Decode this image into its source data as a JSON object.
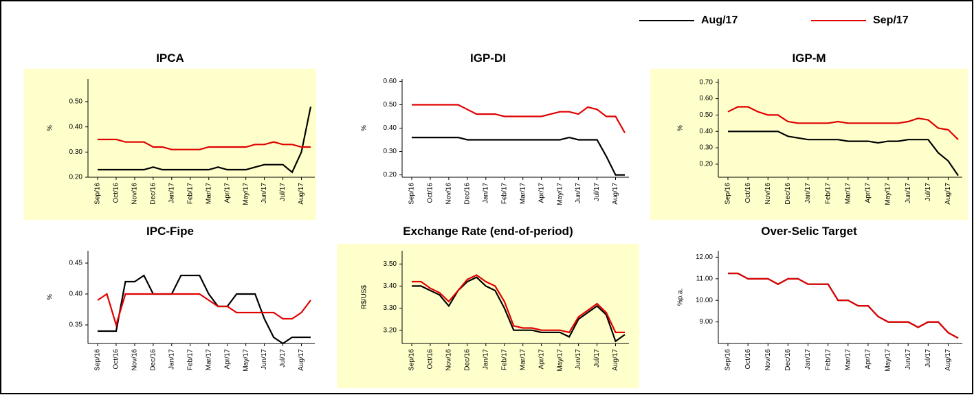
{
  "chart_data": [
    {
      "type": "line",
      "title": "IPCA",
      "y_label": "%",
      "panel": "#ffffcc",
      "categories": [
        "Sep/16",
        null,
        "Oct/16",
        null,
        "Nov/16",
        null,
        "Dec/16",
        null,
        "Jan/17",
        null,
        "Feb/17",
        null,
        "Mar/17",
        null,
        "Apr/17",
        null,
        "May/17",
        null,
        "Jun/17",
        null,
        "Jul/17",
        null,
        "Aug/17",
        null
      ],
      "ylim": [
        0.2,
        0.59
      ],
      "yticks": [
        {
          "value": 0.2,
          "label": "0.20"
        },
        {
          "value": 0.3,
          "label": "0.30"
        },
        {
          "value": 0.4,
          "label": "0.40"
        },
        {
          "value": 0.5,
          "label": "0.50"
        }
      ],
      "series": [
        {
          "name": "Aug/17",
          "color": "#000000",
          "values": [
            0.23,
            0.23,
            0.23,
            0.23,
            0.23,
            0.23,
            0.24,
            0.23,
            0.23,
            0.23,
            0.23,
            0.23,
            0.23,
            0.24,
            0.23,
            0.23,
            0.23,
            0.24,
            0.25,
            0.25,
            0.25,
            0.22,
            0.3,
            0.48
          ]
        },
        {
          "name": "Sep/17",
          "color": "#e00000",
          "values": [
            0.35,
            0.35,
            0.35,
            0.34,
            0.34,
            0.34,
            0.32,
            0.32,
            0.31,
            0.31,
            0.31,
            0.31,
            0.32,
            0.32,
            0.32,
            0.32,
            0.32,
            0.33,
            0.33,
            0.34,
            0.33,
            0.33,
            0.32,
            0.32
          ]
        }
      ]
    },
    {
      "type": "line",
      "title": "IGP-DI",
      "y_label": "%",
      "panel": "#ffffff",
      "categories": [
        "Sep/16",
        null,
        "Oct/16",
        null,
        "Nov/16",
        null,
        "Dec/16",
        null,
        "Jan/17",
        null,
        "Feb/17",
        null,
        "Mar/17",
        null,
        "Apr/17",
        null,
        "May/17",
        null,
        "Jun/17",
        null,
        "Jul/17",
        null,
        "Aug/17",
        null
      ],
      "ylim": [
        0.19,
        0.61
      ],
      "yticks": [
        {
          "value": 0.2,
          "label": "0.20"
        },
        {
          "value": 0.3,
          "label": "0.30"
        },
        {
          "value": 0.4,
          "label": "0.40"
        },
        {
          "value": 0.5,
          "label": "0.50"
        },
        {
          "value": 0.6,
          "label": "0.60"
        }
      ],
      "series": [
        {
          "name": "Aug/17",
          "color": "#000000",
          "values": [
            0.36,
            0.36,
            0.36,
            0.36,
            0.36,
            0.36,
            0.35,
            0.35,
            0.35,
            0.35,
            0.35,
            0.35,
            0.35,
            0.35,
            0.35,
            0.35,
            0.35,
            0.36,
            0.35,
            0.35,
            0.35,
            0.28,
            0.2,
            0.2
          ]
        },
        {
          "name": "Sep/17",
          "color": "#e00000",
          "values": [
            0.5,
            0.5,
            0.5,
            0.5,
            0.5,
            0.5,
            0.48,
            0.46,
            0.46,
            0.46,
            0.45,
            0.45,
            0.45,
            0.45,
            0.45,
            0.46,
            0.47,
            0.47,
            0.46,
            0.49,
            0.48,
            0.45,
            0.45,
            0.38
          ]
        }
      ]
    },
    {
      "type": "line",
      "title": "IGP-M",
      "y_label": "%",
      "panel": "#ffffcc",
      "categories": [
        "Sep/16",
        null,
        "Oct/16",
        null,
        "Nov/16",
        null,
        "Dec/16",
        null,
        "Jan/17",
        null,
        "Feb/17",
        null,
        "Mar/17",
        null,
        "Apr/17",
        null,
        "May/17",
        null,
        "Jun/17",
        null,
        "Jul/17",
        null,
        "Aug/17",
        null
      ],
      "ylim": [
        0.12,
        0.72
      ],
      "yticks": [
        {
          "value": 0.2,
          "label": "0.20"
        },
        {
          "value": 0.3,
          "label": "0.30"
        },
        {
          "value": 0.4,
          "label": "0.40"
        },
        {
          "value": 0.5,
          "label": "0.50"
        },
        {
          "value": 0.6,
          "label": "0.60"
        },
        {
          "value": 0.7,
          "label": "0.70"
        }
      ],
      "series": [
        {
          "name": "Aug/17",
          "color": "#000000",
          "values": [
            0.4,
            0.4,
            0.4,
            0.4,
            0.4,
            0.4,
            0.37,
            0.36,
            0.35,
            0.35,
            0.35,
            0.35,
            0.34,
            0.34,
            0.34,
            0.33,
            0.34,
            0.34,
            0.35,
            0.35,
            0.35,
            0.27,
            0.22,
            0.13
          ]
        },
        {
          "name": "Sep/17",
          "color": "#e00000",
          "values": [
            0.52,
            0.55,
            0.55,
            0.52,
            0.5,
            0.5,
            0.46,
            0.45,
            0.45,
            0.45,
            0.45,
            0.46,
            0.45,
            0.45,
            0.45,
            0.45,
            0.45,
            0.45,
            0.46,
            0.48,
            0.47,
            0.42,
            0.41,
            0.35
          ]
        }
      ]
    },
    {
      "type": "line",
      "title": "IPC-Fipe",
      "y_label": "%",
      "panel": "#ffffff",
      "categories": [
        "Sep/16",
        null,
        "Oct/16",
        null,
        "Nov/16",
        null,
        "Dec/16",
        null,
        "Jan/17",
        null,
        "Feb/17",
        null,
        "Mar/17",
        null,
        "Apr/17",
        null,
        "May/17",
        null,
        "Jun/17",
        null,
        "Jul/17",
        null,
        "Aug/17",
        null
      ],
      "ylim": [
        0.32,
        0.47
      ],
      "yticks": [
        {
          "value": 0.35,
          "label": "0.35"
        },
        {
          "value": 0.4,
          "label": "0.40"
        },
        {
          "value": 0.45,
          "label": "0.45"
        }
      ],
      "series": [
        {
          "name": "Aug/17",
          "color": "#000000",
          "values": [
            0.34,
            0.34,
            0.34,
            0.42,
            0.42,
            0.43,
            0.4,
            0.4,
            0.4,
            0.43,
            0.43,
            0.43,
            0.4,
            0.38,
            0.38,
            0.4,
            0.4,
            0.4,
            0.36,
            0.33,
            0.32,
            0.33,
            0.33,
            0.33
          ]
        },
        {
          "name": "Sep/17",
          "color": "#e00000",
          "values": [
            0.39,
            0.4,
            0.35,
            0.4,
            0.4,
            0.4,
            0.4,
            0.4,
            0.4,
            0.4,
            0.4,
            0.4,
            0.39,
            0.38,
            0.38,
            0.37,
            0.37,
            0.37,
            0.37,
            0.37,
            0.36,
            0.36,
            0.37,
            0.39
          ]
        }
      ]
    },
    {
      "type": "line",
      "title": "Exchange Rate (end-of-period)",
      "y_label": "R$/US$",
      "panel": "#ffffcc",
      "categories": [
        "Sep/16",
        null,
        "Oct/16",
        null,
        "Nov/16",
        null,
        "Dec/16",
        null,
        "Jan/17",
        null,
        "Feb/17",
        null,
        "Mar/17",
        null,
        "Apr/17",
        null,
        "May/17",
        null,
        "Jun/17",
        null,
        "Jul/17",
        null,
        "Aug/17",
        null
      ],
      "ylim": [
        3.14,
        3.56
      ],
      "yticks": [
        {
          "value": 3.2,
          "label": "3.20"
        },
        {
          "value": 3.3,
          "label": "3.30"
        },
        {
          "value": 3.4,
          "label": "3.40"
        },
        {
          "value": 3.5,
          "label": "3.50"
        }
      ],
      "series": [
        {
          "name": "Aug/17",
          "color": "#000000",
          "values": [
            3.4,
            3.4,
            3.38,
            3.36,
            3.31,
            3.38,
            3.42,
            3.44,
            3.4,
            3.38,
            3.3,
            3.2,
            3.2,
            3.2,
            3.19,
            3.19,
            3.19,
            3.17,
            3.25,
            3.28,
            3.31,
            3.27,
            3.15,
            3.18
          ]
        },
        {
          "name": "Sep/17",
          "color": "#e00000",
          "values": [
            3.42,
            3.42,
            3.39,
            3.37,
            3.33,
            3.38,
            3.43,
            3.45,
            3.42,
            3.4,
            3.33,
            3.22,
            3.21,
            3.21,
            3.2,
            3.2,
            3.2,
            3.19,
            3.26,
            3.29,
            3.32,
            3.28,
            3.19,
            3.19
          ]
        }
      ]
    },
    {
      "type": "line",
      "title": "Over-Selic Target",
      "y_label": "%p.a.",
      "panel": "#ffffff",
      "categories": [
        "Sep/16",
        null,
        "Oct/16",
        null,
        "Nov/16",
        null,
        "Dec/16",
        null,
        "Jan/17",
        null,
        "Feb/17",
        null,
        "Mar/17",
        null,
        "Apr/17",
        null,
        "May/17",
        null,
        "Jun/17",
        null,
        "Jul/17",
        null,
        "Aug/17",
        null
      ],
      "ylim": [
        8.0,
        12.3
      ],
      "yticks": [
        {
          "value": 9,
          "label": "9.00"
        },
        {
          "value": 10,
          "label": "10.00"
        },
        {
          "value": 11,
          "label": "11.00"
        },
        {
          "value": 12,
          "label": "12.00"
        }
      ],
      "series": [
        {
          "name": "Aug/17",
          "color": "#000000",
          "values": [
            11.25,
            11.25,
            11.0,
            11.0,
            11.0,
            10.75,
            11.0,
            11.0,
            10.75,
            10.75,
            10.75,
            10.0,
            10.0,
            9.75,
            9.75,
            9.25,
            9.0,
            9.0,
            9.0,
            8.75,
            9.0,
            9.0,
            8.5,
            8.25
          ]
        },
        {
          "name": "Sep/17",
          "color": "#e00000",
          "values": [
            11.25,
            11.25,
            11.0,
            11.0,
            11.0,
            10.75,
            11.0,
            11.0,
            10.75,
            10.75,
            10.75,
            10.0,
            10.0,
            9.75,
            9.75,
            9.25,
            9.0,
            9.0,
            9.0,
            8.75,
            9.0,
            9.0,
            8.5,
            8.25
          ]
        }
      ]
    }
  ]
}
